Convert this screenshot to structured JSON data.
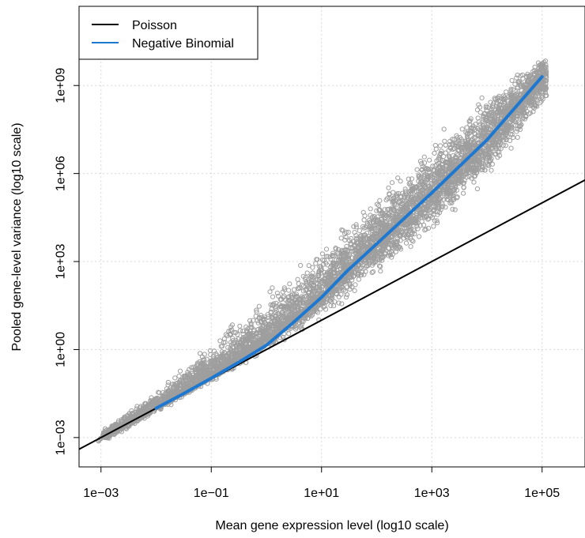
{
  "chart_data": {
    "type": "scatter",
    "title": "",
    "xlabel": "Mean gene expression level (log10 scale)",
    "ylabel": "Pooled gene-level variance (log10 scale)",
    "x_scale": "log10",
    "y_scale": "log10",
    "xlim": [
      0.0004,
      600000
    ],
    "ylim": [
      0.0001,
      500000000000
    ],
    "x_ticks": [
      0.001,
      0.1,
      10,
      1000,
      100000
    ],
    "x_tick_labels": [
      "1e−03",
      "1e−01",
      "1e+01",
      "1e+03",
      "1e+05"
    ],
    "y_ticks": [
      0.001,
      1,
      1000,
      1000000,
      1000000000
    ],
    "y_tick_labels": [
      "1e−03",
      "1e+00",
      "1e+03",
      "1e+06",
      "1e+09"
    ],
    "grid": true,
    "legend_position": "top-left",
    "colors": {
      "points": "#9e9e9e",
      "poisson": "#000000",
      "negative_binomial": "#1f78d0",
      "grid": "#d9d9d9"
    },
    "series": [
      {
        "name": "Poisson",
        "kind": "line",
        "color": "#000000",
        "x": [
          0.0004,
          600000
        ],
        "y": [
          0.0004,
          600000
        ]
      },
      {
        "name": "Negative Binomial",
        "kind": "line",
        "color": "#1f78d0",
        "x": [
          0.01,
          0.03,
          0.1,
          0.3,
          1,
          3,
          10,
          30,
          100,
          1000,
          10000,
          100000
        ],
        "y": [
          0.01,
          0.03,
          0.105,
          0.35,
          1.4,
          8,
          60,
          500,
          4000,
          220000,
          14000000,
          2000000000
        ]
      },
      {
        "kind": "scatter",
        "color": "#9e9e9e",
        "point_cloud": {
          "x_range": [
            0.0009,
            120000
          ],
          "y_max": 20000000000,
          "band": [
            {
              "x": 0.001,
              "y_low": 0.0005,
              "y_mid": 0.001,
              "y_high": 0.002
            },
            {
              "x": 0.01,
              "y_low": 0.006,
              "y_mid": 0.012,
              "y_high": 0.05
            },
            {
              "x": 0.1,
              "y_low": 0.07,
              "y_mid": 0.15,
              "y_high": 3
            },
            {
              "x": 1,
              "y_low": 0.7,
              "y_mid": 3,
              "y_high": 150
            },
            {
              "x": 10,
              "y_low": 8,
              "y_mid": 80,
              "y_high": 8000
            },
            {
              "x": 100,
              "y_low": 150,
              "y_mid": 5000,
              "y_high": 300000
            },
            {
              "x": 1000,
              "y_low": 5000,
              "y_mid": 250000,
              "y_high": 30000000
            },
            {
              "x": 10000,
              "y_low": 300000,
              "y_mid": 15000000,
              "y_high": 1000000000
            },
            {
              "x": 100000,
              "y_low": 100000000,
              "y_mid": 2000000000,
              "y_high": 15000000000
            }
          ]
        }
      }
    ]
  }
}
